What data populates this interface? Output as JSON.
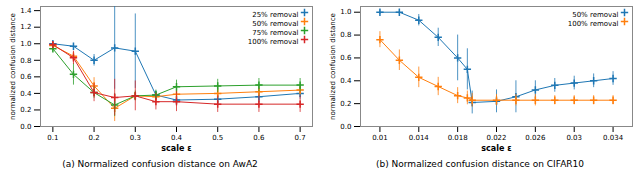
{
  "chart_data": [
    {
      "type": "line",
      "caption": "(a) Normalized confusion distance on AwA2",
      "xlabel": "scale ε",
      "ylabel": "normalized confusion distance",
      "x": [
        0.1,
        0.15,
        0.2,
        0.25,
        0.3,
        0.35,
        0.4,
        0.5,
        0.6,
        0.7
      ],
      "series": [
        {
          "name": "25% removal",
          "color": "#1f77b4",
          "values": [
            1.0,
            0.97,
            0.8,
            0.95,
            0.91,
            0.38,
            0.32,
            0.33,
            0.36,
            0.4
          ],
          "yerr": [
            0.02,
            0.03,
            0.07,
            0.5,
            0.45,
            0.05,
            0.07,
            0.07,
            0.07,
            0.07
          ]
        },
        {
          "name": "50% removal",
          "color": "#ff7f0e",
          "values": [
            0.98,
            0.85,
            0.49,
            0.22,
            0.37,
            0.36,
            0.39,
            0.4,
            0.42,
            0.44
          ],
          "yerr": [
            0.02,
            0.05,
            0.1,
            0.16,
            0.05,
            0.05,
            0.06,
            0.06,
            0.06,
            0.06
          ]
        },
        {
          "name": "75% removal",
          "color": "#2ca02c",
          "values": [
            0.94,
            0.63,
            0.41,
            0.26,
            0.37,
            0.38,
            0.48,
            0.49,
            0.5,
            0.5
          ],
          "yerr": [
            0.03,
            0.13,
            0.07,
            0.14,
            0.06,
            0.06,
            0.08,
            0.08,
            0.08,
            0.08
          ]
        },
        {
          "name": "100% removal",
          "color": "#d62728",
          "values": [
            0.99,
            0.83,
            0.41,
            0.35,
            0.37,
            0.3,
            0.3,
            0.27,
            0.27,
            0.27
          ],
          "yerr": [
            0.02,
            0.08,
            0.11,
            0.22,
            0.18,
            0.1,
            0.12,
            0.1,
            0.1,
            0.1
          ]
        }
      ],
      "xlim": [
        0.07,
        0.73
      ],
      "xticks": [
        0.1,
        0.2,
        0.3,
        0.4,
        0.5,
        0.6,
        0.7
      ],
      "ylim": [
        0.0,
        1.45
      ],
      "yticks": [
        {
          "value": 0,
          "label": "0.0"
        },
        0.2,
        0.4,
        0.6,
        0.8,
        {
          "value": 1,
          "label": "1.0"
        },
        1.2,
        1.4
      ],
      "legend": "upper right",
      "marker": "plus",
      "grid": false
    },
    {
      "type": "line",
      "caption": "(b) Normalized confusion distance on CIFAR10",
      "xlabel": "scale ε",
      "ylabel": "normalized confusion distance",
      "x": [
        0.01,
        0.012,
        0.014,
        0.016,
        0.018,
        0.019,
        0.0195,
        0.022,
        0.024,
        0.026,
        0.028,
        0.03,
        0.032,
        0.034
      ],
      "series": [
        {
          "name": "50% removal",
          "color": "#1f77b4",
          "values": [
            1.0,
            1.0,
            0.93,
            0.78,
            0.6,
            0.5,
            0.21,
            0.22,
            0.26,
            0.32,
            0.36,
            0.38,
            0.4,
            0.42
          ],
          "yerr": [
            0.02,
            0.02,
            0.05,
            0.08,
            0.2,
            0.18,
            0.1,
            0.1,
            0.14,
            0.08,
            0.06,
            0.06,
            0.06,
            0.06
          ]
        },
        {
          "name": "100% removal",
          "color": "#ff7f0e",
          "values": [
            0.76,
            0.58,
            0.43,
            0.35,
            0.27,
            0.25,
            0.23,
            0.23,
            0.23,
            0.23,
            0.23,
            0.23,
            0.23,
            0.23
          ],
          "yerr": [
            0.07,
            0.09,
            0.09,
            0.08,
            0.07,
            0.06,
            0.06,
            0.05,
            0.05,
            0.05,
            0.04,
            0.04,
            0.04,
            0.04
          ]
        }
      ],
      "xlim": [
        0.008,
        0.036
      ],
      "xticks": [
        0.01,
        0.014,
        0.018,
        0.022,
        0.026,
        0.03,
        0.034
      ],
      "ylim": [
        0.0,
        1.05
      ],
      "yticks": [
        {
          "value": 0,
          "label": "0.0"
        },
        0.2,
        0.4,
        0.6,
        0.8,
        {
          "value": 1,
          "label": "1.0"
        }
      ],
      "legend": "upper right",
      "marker": "plus",
      "grid": false
    }
  ]
}
